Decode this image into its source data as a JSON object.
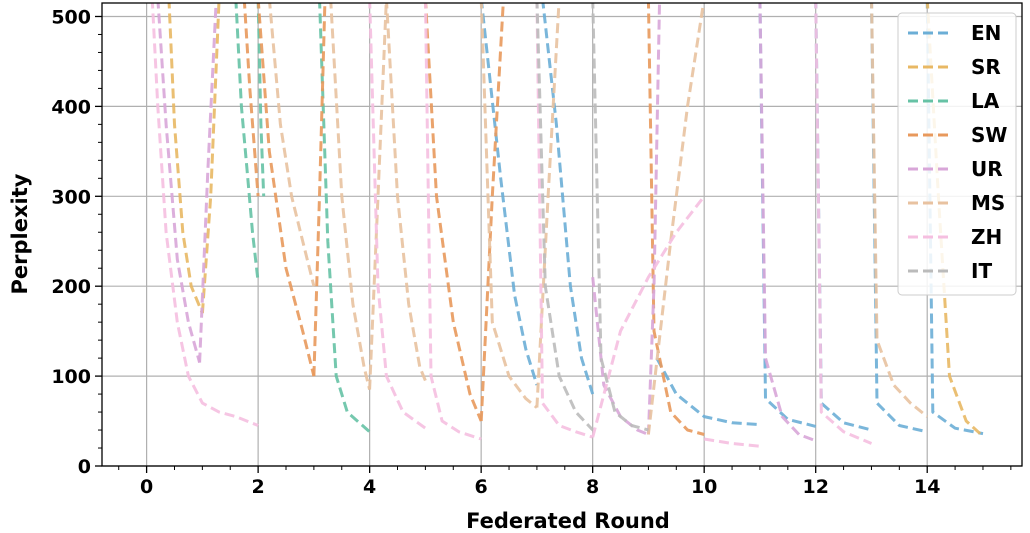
{
  "chart_data": {
    "type": "line",
    "xlabel": "Federated Round",
    "ylabel": "Perplexity",
    "xlim": [
      -0.8,
      15.7
    ],
    "ylim": [
      0,
      515
    ],
    "xticks": [
      0,
      2,
      4,
      6,
      8,
      10,
      12,
      14
    ],
    "yticks": [
      0,
      100,
      200,
      300,
      400,
      500
    ],
    "grid": true,
    "legend_position": "top-right",
    "series": [
      {
        "name": "EN",
        "color": "#6baed6",
        "segments": [
          [
            [
              6.0,
              520
            ],
            [
              6.35,
              320
            ],
            [
              6.6,
              190
            ],
            [
              6.8,
              130
            ],
            [
              7.0,
              90
            ]
          ],
          [
            [
              7.1,
              520
            ],
            [
              7.35,
              380
            ],
            [
              7.6,
              200
            ],
            [
              7.8,
              120
            ],
            [
              8.0,
              80
            ]
          ],
          [
            [
              9.15,
              120
            ],
            [
              9.5,
              80
            ],
            [
              10.0,
              55
            ],
            [
              10.5,
              48
            ],
            [
              11.0,
              46
            ]
          ],
          [
            [
              11.0,
              520
            ],
            [
              11.1,
              75
            ],
            [
              11.5,
              52
            ],
            [
              12.0,
              44
            ]
          ],
          [
            [
              12.0,
              520
            ],
            [
              12.1,
              70
            ],
            [
              12.5,
              48
            ],
            [
              13.0,
              40
            ]
          ],
          [
            [
              13.0,
              520
            ],
            [
              13.1,
              70
            ],
            [
              13.5,
              45
            ],
            [
              14.0,
              38
            ]
          ],
          [
            [
              14.0,
              520
            ],
            [
              14.1,
              60
            ],
            [
              14.5,
              42
            ],
            [
              15.0,
              36
            ]
          ]
        ]
      },
      {
        "name": "SR",
        "color": "#e8b864",
        "segments": [
          [
            [
              0.4,
              520
            ],
            [
              0.5,
              380
            ],
            [
              0.65,
              260
            ],
            [
              0.8,
              200
            ],
            [
              1.0,
              170
            ]
          ],
          [
            [
              1.0,
              170
            ],
            [
              1.15,
              300
            ],
            [
              1.3,
              520
            ]
          ],
          [
            [
              14.0,
              520
            ],
            [
              14.2,
              300
            ],
            [
              14.4,
              100
            ],
            [
              14.7,
              50
            ],
            [
              15.0,
              33
            ]
          ]
        ]
      },
      {
        "name": "LA",
        "color": "#66c2a5",
        "segments": [
          [
            [
              1.6,
              520
            ],
            [
              1.7,
              400
            ],
            [
              1.8,
              330
            ],
            [
              1.9,
              260
            ],
            [
              2.0,
              205
            ]
          ],
          [
            [
              2.0,
              520
            ],
            [
              2.05,
              380
            ],
            [
              2.1,
              300
            ]
          ],
          [
            [
              3.1,
              520
            ],
            [
              3.25,
              250
            ],
            [
              3.4,
              100
            ],
            [
              3.6,
              60
            ],
            [
              4.0,
              38
            ]
          ]
        ]
      },
      {
        "name": "SW",
        "color": "#e8995c",
        "segments": [
          [
            [
              2.0,
              520
            ],
            [
              2.2,
              350
            ],
            [
              2.5,
              220
            ],
            [
              2.8,
              150
            ],
            [
              3.0,
              100
            ]
          ],
          [
            [
              3.0,
              100
            ],
            [
              3.1,
              300
            ],
            [
              3.2,
              520
            ]
          ],
          [
            [
              5.0,
              520
            ],
            [
              5.2,
              300
            ],
            [
              5.5,
              160
            ],
            [
              5.8,
              80
            ],
            [
              6.0,
              50
            ]
          ],
          [
            [
              6.0,
              50
            ],
            [
              6.2,
              300
            ],
            [
              6.4,
              520
            ]
          ],
          [
            [
              9.0,
              520
            ],
            [
              9.1,
              150
            ],
            [
              9.4,
              60
            ],
            [
              9.7,
              40
            ],
            [
              10.0,
              35
            ]
          ],
          [
            [
              1.75,
              520
            ],
            [
              1.85,
              420
            ],
            [
              2.0,
              300
            ]
          ]
        ]
      },
      {
        "name": "UR",
        "color": "#d8a6d8",
        "segments": [
          [
            [
              0.2,
              520
            ],
            [
              0.35,
              380
            ],
            [
              0.55,
              230
            ],
            [
              0.75,
              160
            ],
            [
              0.95,
              115
            ]
          ],
          [
            [
              0.95,
              115
            ],
            [
              1.1,
              330
            ],
            [
              1.25,
              520
            ]
          ],
          [
            [
              8.0,
              210
            ],
            [
              8.2,
              90
            ],
            [
              8.5,
              55
            ],
            [
              8.8,
              40
            ],
            [
              9.0,
              35
            ]
          ],
          [
            [
              9.0,
              35
            ],
            [
              9.1,
              200
            ],
            [
              9.2,
              520
            ]
          ],
          [
            [
              11.0,
              520
            ],
            [
              11.1,
              120
            ],
            [
              11.4,
              55
            ],
            [
              11.7,
              35
            ],
            [
              12.0,
              28
            ]
          ]
        ]
      },
      {
        "name": "MS",
        "color": "#e8c2a0",
        "segments": [
          [
            [
              2.2,
              520
            ],
            [
              2.4,
              380
            ],
            [
              2.6,
              300
            ],
            [
              2.8,
              250
            ],
            [
              3.0,
              200
            ]
          ],
          [
            [
              3.3,
              520
            ],
            [
              3.5,
              300
            ],
            [
              3.7,
              180
            ],
            [
              3.9,
              110
            ],
            [
              4.0,
              85
            ]
          ],
          [
            [
              4.0,
              85
            ],
            [
              4.15,
              300
            ],
            [
              4.3,
              520
            ]
          ],
          [
            [
              4.3,
              520
            ],
            [
              4.5,
              300
            ],
            [
              4.7,
              180
            ],
            [
              4.9,
              110
            ],
            [
              5.0,
              95
            ]
          ],
          [
            [
              6.0,
              520
            ],
            [
              6.2,
              160
            ],
            [
              6.5,
              100
            ],
            [
              6.8,
              75
            ],
            [
              7.0,
              65
            ]
          ],
          [
            [
              7.0,
              65
            ],
            [
              7.2,
              300
            ],
            [
              7.4,
              520
            ]
          ],
          [
            [
              9.0,
              35
            ],
            [
              9.4,
              250
            ],
            [
              9.7,
              400
            ],
            [
              10.0,
              520
            ]
          ],
          [
            [
              13.0,
              520
            ],
            [
              13.1,
              140
            ],
            [
              13.4,
              90
            ],
            [
              13.7,
              70
            ],
            [
              14.0,
              55
            ]
          ]
        ]
      },
      {
        "name": "ZH",
        "color": "#f5bfe0",
        "segments": [
          [
            [
              0.1,
              520
            ],
            [
              0.2,
              400
            ],
            [
              0.35,
              260
            ],
            [
              0.55,
              160
            ],
            [
              0.75,
              100
            ],
            [
              1.0,
              70
            ],
            [
              1.3,
              60
            ],
            [
              1.6,
              55
            ],
            [
              2.0,
              45
            ]
          ],
          [
            [
              4.0,
              520
            ],
            [
              4.15,
              200
            ],
            [
              4.3,
              100
            ],
            [
              4.6,
              60
            ],
            [
              5.0,
              42
            ]
          ],
          [
            [
              5.0,
              520
            ],
            [
              5.1,
              100
            ],
            [
              5.3,
              50
            ],
            [
              5.6,
              38
            ],
            [
              6.0,
              30
            ]
          ],
          [
            [
              7.0,
              520
            ],
            [
              7.1,
              70
            ],
            [
              7.4,
              45
            ],
            [
              7.7,
              38
            ],
            [
              8.0,
              32
            ]
          ],
          [
            [
              8.0,
              32
            ],
            [
              8.5,
              150
            ],
            [
              9.0,
              210
            ],
            [
              9.5,
              260
            ],
            [
              10.0,
              300
            ]
          ],
          [
            [
              10.0,
              30
            ],
            [
              10.5,
              25
            ],
            [
              11.0,
              22
            ]
          ],
          [
            [
              12.0,
              520
            ],
            [
              12.1,
              60
            ],
            [
              12.5,
              38
            ],
            [
              13.0,
              25
            ]
          ]
        ]
      },
      {
        "name": "IT",
        "color": "#bbbbbb",
        "segments": [
          [
            [
              7.0,
              520
            ],
            [
              7.15,
              200
            ],
            [
              7.4,
              100
            ],
            [
              7.7,
              60
            ],
            [
              8.0,
              40
            ]
          ],
          [
            [
              8.0,
              520
            ],
            [
              8.15,
              120
            ],
            [
              8.4,
              60
            ],
            [
              8.7,
              45
            ],
            [
              9.0,
              40
            ]
          ]
        ]
      }
    ]
  }
}
